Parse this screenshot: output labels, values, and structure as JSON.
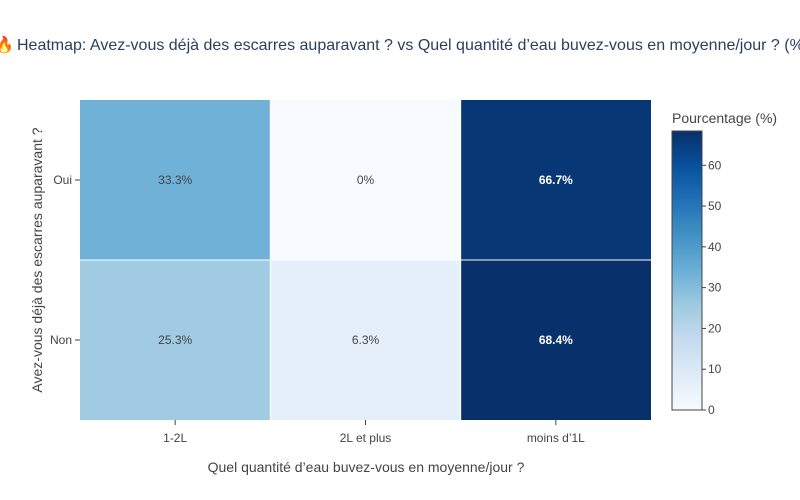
{
  "chart_data": {
    "type": "heatmap",
    "title_icon": "fire-icon",
    "title": "Heatmap: Avez-vous déjà des escarres auparavant ? vs Quel quantité d’eau buvez-vous en moyenne/jour ? (%)",
    "xlabel": "Quel quantité d’eau buvez-vous en moyenne/jour ?",
    "ylabel": "Avez-vous déjà des escarres auparavant ?",
    "x": [
      "1-2L",
      "2L et plus",
      "moins d’1L"
    ],
    "y": [
      "Oui",
      "Non"
    ],
    "z": [
      [
        33.3,
        0,
        66.7
      ],
      [
        25.3,
        6.3,
        68.4
      ]
    ],
    "text": [
      [
        "33.3%",
        "0%",
        "66.7%"
      ],
      [
        "25.3%",
        "6.3%",
        "68.4%"
      ]
    ],
    "colorscale": "Blues",
    "zmin": 0,
    "zmax": 68.4,
    "colorbar": {
      "title": "Pourcentage (%)",
      "ticks": [
        0,
        10,
        20,
        30,
        40,
        50,
        60
      ]
    }
  }
}
